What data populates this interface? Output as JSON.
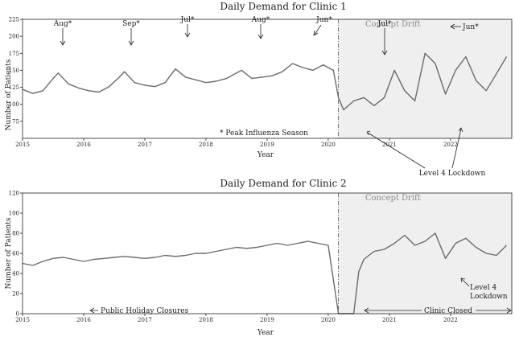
{
  "chart_data": [
    {
      "type": "line",
      "title": "Daily Demand for Clinic 1",
      "xlabel": "Year",
      "ylabel": "Number of Patients",
      "xlim": [
        "2015-01-01",
        "2022-12-31"
      ],
      "ylim": [
        50,
        225
      ],
      "yticks": [
        75,
        100,
        125,
        150,
        175,
        200,
        225
      ],
      "xticks": [
        "2015",
        "2016",
        "2017",
        "2018",
        "2019",
        "2020",
        "2021",
        "2022"
      ],
      "grid": false,
      "shaded_region": {
        "label": "Concept Drift",
        "start": "2020-03-01",
        "end": "2022-12-31"
      },
      "series": [
        {
          "name": "",
          "color": "#6b6b6b",
          "x": [
            "2015-01",
            "2015-03",
            "2015-05",
            "2015-07",
            "2015-08",
            "2015-10",
            "2015-12",
            "2016-02",
            "2016-04",
            "2016-06",
            "2016-08",
            "2016-09",
            "2016-11",
            "2017-01",
            "2017-03",
            "2017-05",
            "2017-07",
            "2017-09",
            "2017-11",
            "2018-01",
            "2018-03",
            "2018-05",
            "2018-07",
            "2018-08",
            "2018-10",
            "2018-12",
            "2019-02",
            "2019-04",
            "2019-06",
            "2019-08",
            "2019-10",
            "2019-12",
            "2020-02",
            "2020-03",
            "2020-04",
            "2020-06",
            "2020-08",
            "2020-10",
            "2020-12",
            "2021-02",
            "2021-04",
            "2021-06",
            "2021-08",
            "2021-10",
            "2021-12",
            "2022-02",
            "2022-04",
            "2022-06",
            "2022-08",
            "2022-10",
            "2022-12"
          ],
          "y": [
            122,
            116,
            120,
            138,
            146,
            130,
            124,
            120,
            118,
            126,
            140,
            148,
            132,
            128,
            126,
            132,
            152,
            140,
            136,
            132,
            134,
            138,
            146,
            150,
            138,
            140,
            142,
            148,
            160,
            154,
            150,
            158,
            150,
            110,
            92,
            105,
            110,
            98,
            110,
            150,
            120,
            105,
            175,
            160,
            115,
            150,
            170,
            135,
            120,
            145,
            170
          ]
        }
      ],
      "annotations": [
        {
          "text": "Aug*",
          "x": "2015-08"
        },
        {
          "text": "Sep*",
          "x": "2016-09"
        },
        {
          "text": "Jul*",
          "x": "2017-07"
        },
        {
          "text": "Aug*",
          "x": "2018-08"
        },
        {
          "text": "Jun*",
          "x": "2019-06"
        },
        {
          "text": "Jul*",
          "x": "2020-07"
        },
        {
          "text": "Jun*",
          "x": "2021-06"
        },
        {
          "text": "* Peak Influenza Season"
        },
        {
          "text": "Level 4 Lockdown"
        }
      ]
    },
    {
      "type": "line",
      "title": "Daily Demand for Clinic 2",
      "xlabel": "Year",
      "ylabel": "Number of Patients",
      "xlim": [
        "2015-01-01",
        "2022-12-31"
      ],
      "ylim": [
        0,
        120
      ],
      "yticks": [
        0,
        20,
        40,
        60,
        80,
        100,
        120
      ],
      "xticks": [
        "2015",
        "2016",
        "2017",
        "2018",
        "2019",
        "2020",
        "2021",
        "2022"
      ],
      "grid": false,
      "shaded_region": {
        "label": "Concept Drift",
        "start": "2020-03-01",
        "end": "2022-12-31"
      },
      "series": [
        {
          "name": "",
          "color": "#6b6b6b",
          "x": [
            "2015-01",
            "2015-03",
            "2015-05",
            "2015-07",
            "2015-09",
            "2015-11",
            "2016-01",
            "2016-03",
            "2016-05",
            "2016-07",
            "2016-09",
            "2016-11",
            "2017-01",
            "2017-03",
            "2017-05",
            "2017-07",
            "2017-09",
            "2017-11",
            "2018-01",
            "2018-03",
            "2018-05",
            "2018-07",
            "2018-09",
            "2018-11",
            "2019-01",
            "2019-03",
            "2019-05",
            "2019-07",
            "2019-09",
            "2019-11",
            "2020-01",
            "2020-03",
            "2020-04",
            "2020-06",
            "2020-07",
            "2020-08",
            "2020-10",
            "2020-12",
            "2021-02",
            "2021-04",
            "2021-06",
            "2021-08",
            "2021-10",
            "2021-12",
            "2022-02",
            "2022-04",
            "2022-06",
            "2022-08",
            "2022-10",
            "2022-12"
          ],
          "y": [
            50,
            48,
            52,
            55,
            56,
            54,
            52,
            54,
            55,
            56,
            57,
            56,
            55,
            56,
            58,
            57,
            58,
            60,
            60,
            62,
            64,
            66,
            65,
            66,
            68,
            70,
            68,
            70,
            72,
            70,
            68,
            0,
            0,
            0,
            42,
            54,
            62,
            64,
            70,
            78,
            68,
            72,
            80,
            55,
            70,
            75,
            66,
            60,
            58,
            68
          ]
        }
      ],
      "annotations": [
        {
          "text": "Public Holiday Closures"
        },
        {
          "text": "Clinic Closed"
        },
        {
          "text": "Level 4 Lockdown"
        }
      ]
    }
  ]
}
